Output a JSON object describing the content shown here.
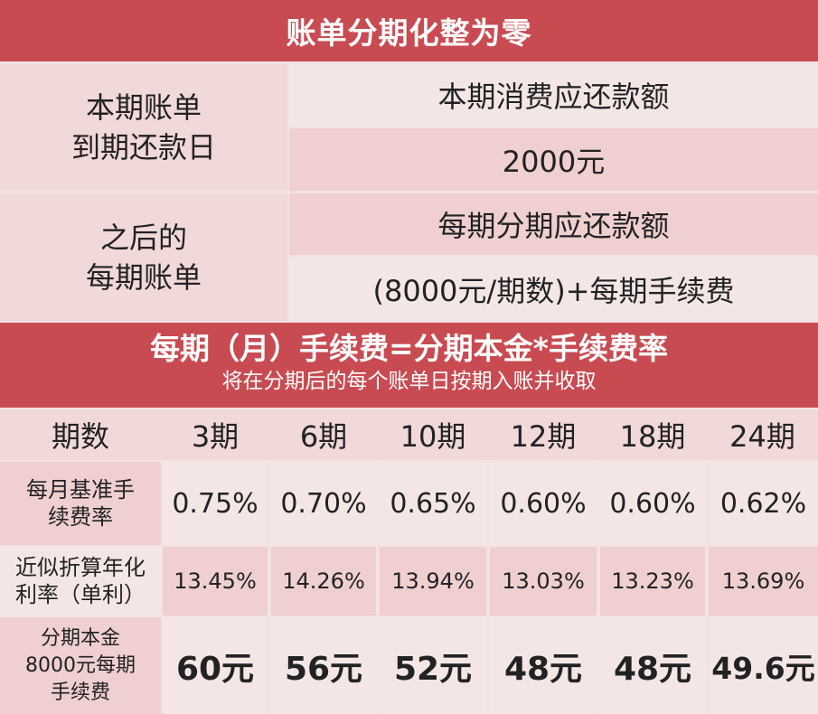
{
  "header": {
    "title": "账单分期化整为零"
  },
  "top": {
    "row1_label": "本期账单\n到期还款日",
    "row1_head": "本期消费应还款额",
    "row1_value": "2000元",
    "row2_label": "之后的\n每期账单",
    "row2_head": "每期分期应还款额",
    "row2_value": "(8000元/期数)+每期手续费"
  },
  "formula": {
    "title": "每期（月）手续费=分期本金*手续费率",
    "subtitle": "将在分期后的每个账单日按期入账并收取"
  },
  "table": {
    "header_label": "期数",
    "periods": [
      "3期",
      "6期",
      "10期",
      "12期",
      "18期",
      "24期"
    ],
    "rate_label": "每月基准手\n续费率",
    "rates": [
      "0.75%",
      "0.70%",
      "0.65%",
      "0.60%",
      "0.60%",
      "0.62%"
    ],
    "annual_label": "近似折算年化\n利率（单利）",
    "annual": [
      "13.45%",
      "14.26%",
      "13.94%",
      "13.03%",
      "13.23%",
      "13.69%"
    ],
    "fee_label": "分期本金\n8000元每期\n手续费",
    "fees": [
      "60元",
      "56元",
      "52元",
      "48元",
      "48元",
      "49.6元"
    ]
  },
  "colors": {
    "banner": "#c94b52",
    "cell_dark": "#efcfd0",
    "cell_light": "#f5e6e6"
  }
}
